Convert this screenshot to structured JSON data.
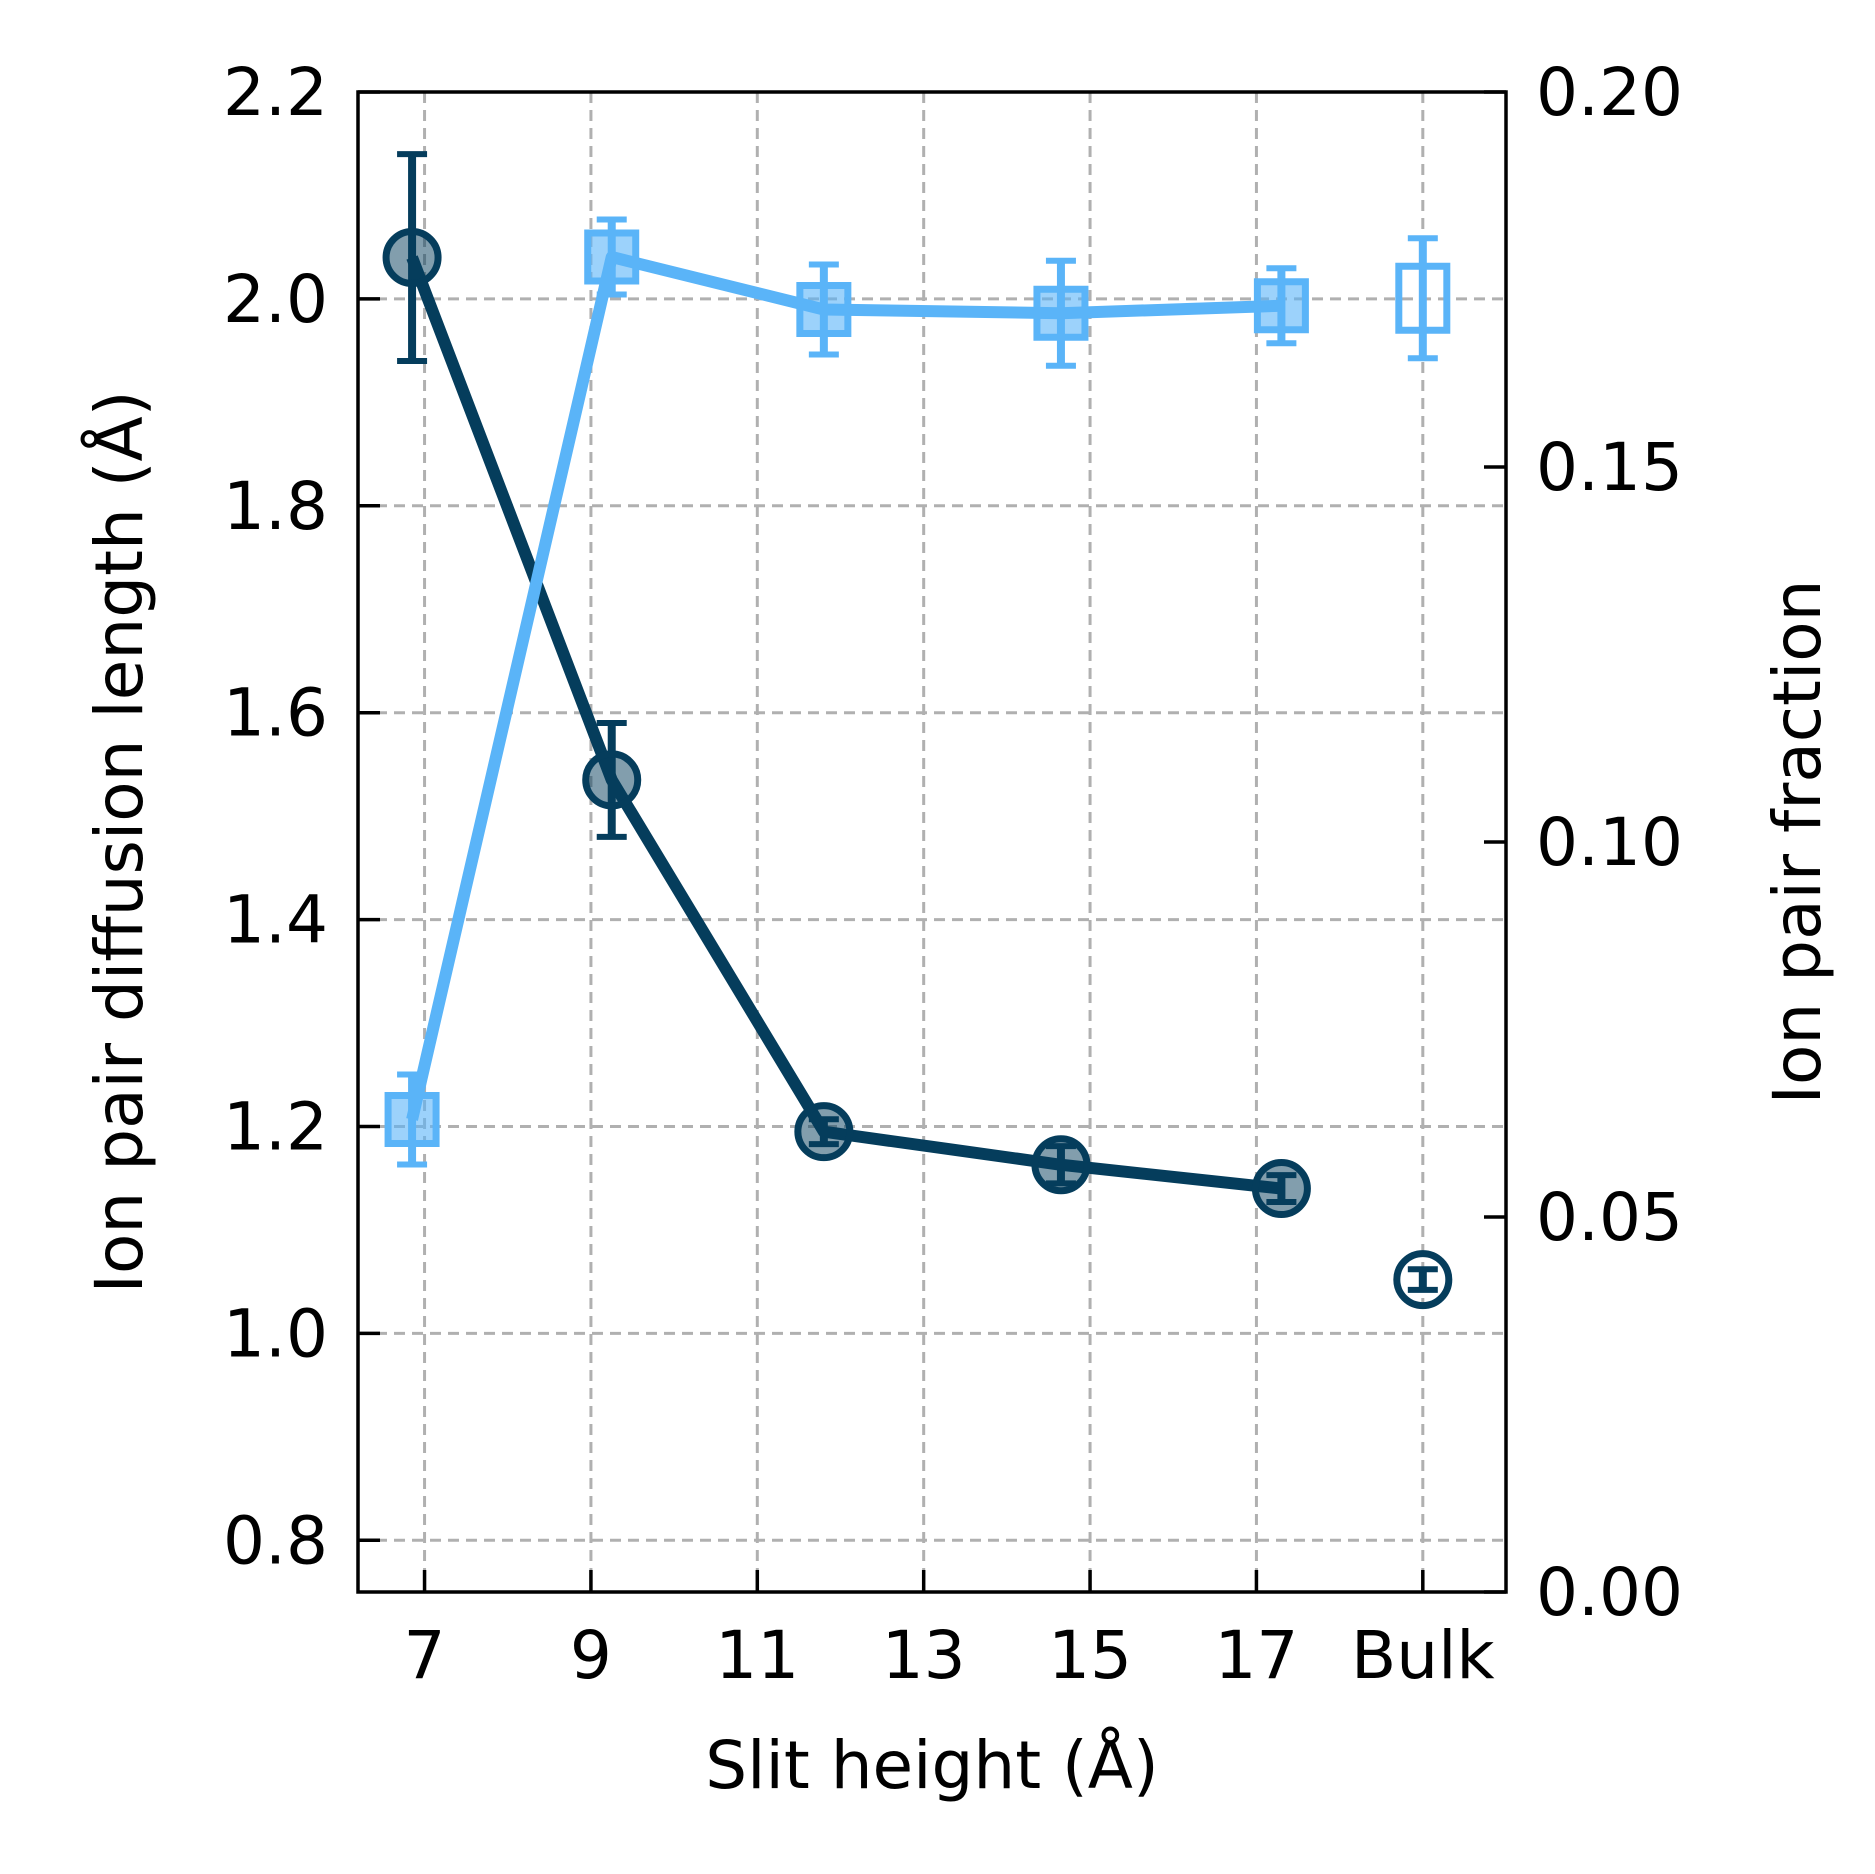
{
  "chart_data": {
    "type": "line",
    "title": "",
    "xlabel": "Slit height (Å)",
    "ylabel_left": "Ion pair diffusion length (Å)",
    "ylabel_right": "Ion pair fraction",
    "x_ticks": [
      "7",
      "9",
      "11",
      "13",
      "15",
      "17",
      "Bulk"
    ],
    "x_tick_values": [
      7,
      9,
      11,
      13,
      15,
      17,
      19
    ],
    "y_left_ticks": [
      "0.8",
      "1.0",
      "1.2",
      "1.4",
      "1.6",
      "1.8",
      "2.0",
      "2.2"
    ],
    "y_right_ticks": [
      "0.00",
      "0.05",
      "0.10",
      "0.15",
      "0.20"
    ],
    "xlim": [
      6.2,
      20.0
    ],
    "ylim_left": [
      0.75,
      2.2
    ],
    "ylim_right": [
      0.0,
      0.2
    ],
    "grid": true,
    "series": [
      {
        "axis": "left",
        "color": "#053d5c",
        "marker": "circle",
        "x": [
          6.85,
          9.25,
          11.8,
          14.65,
          17.3
        ],
        "values": [
          2.04,
          1.535,
          1.195,
          1.163,
          1.14
        ],
        "errors": [
          0.1,
          0.055,
          0.012,
          0.018,
          0.013
        ]
      },
      {
        "axis": "left",
        "color": "#053d5c",
        "marker": "circle-open",
        "x": [
          19.0
        ],
        "values": [
          1.052
        ],
        "errors": [
          0.01
        ]
      },
      {
        "axis": "right",
        "color": "#5ab4f8",
        "marker": "square",
        "x": [
          6.85,
          9.25,
          11.8,
          14.65,
          17.3
        ],
        "values": [
          0.063,
          0.178,
          0.171,
          0.1705,
          0.1715
        ],
        "errors": [
          0.006,
          0.005,
          0.006,
          0.007,
          0.005
        ]
      },
      {
        "axis": "right",
        "color": "#5ab4f8",
        "marker": "square-open",
        "x": [
          19.0
        ],
        "values": [
          0.1725
        ],
        "errors": [
          0.008
        ]
      }
    ]
  }
}
